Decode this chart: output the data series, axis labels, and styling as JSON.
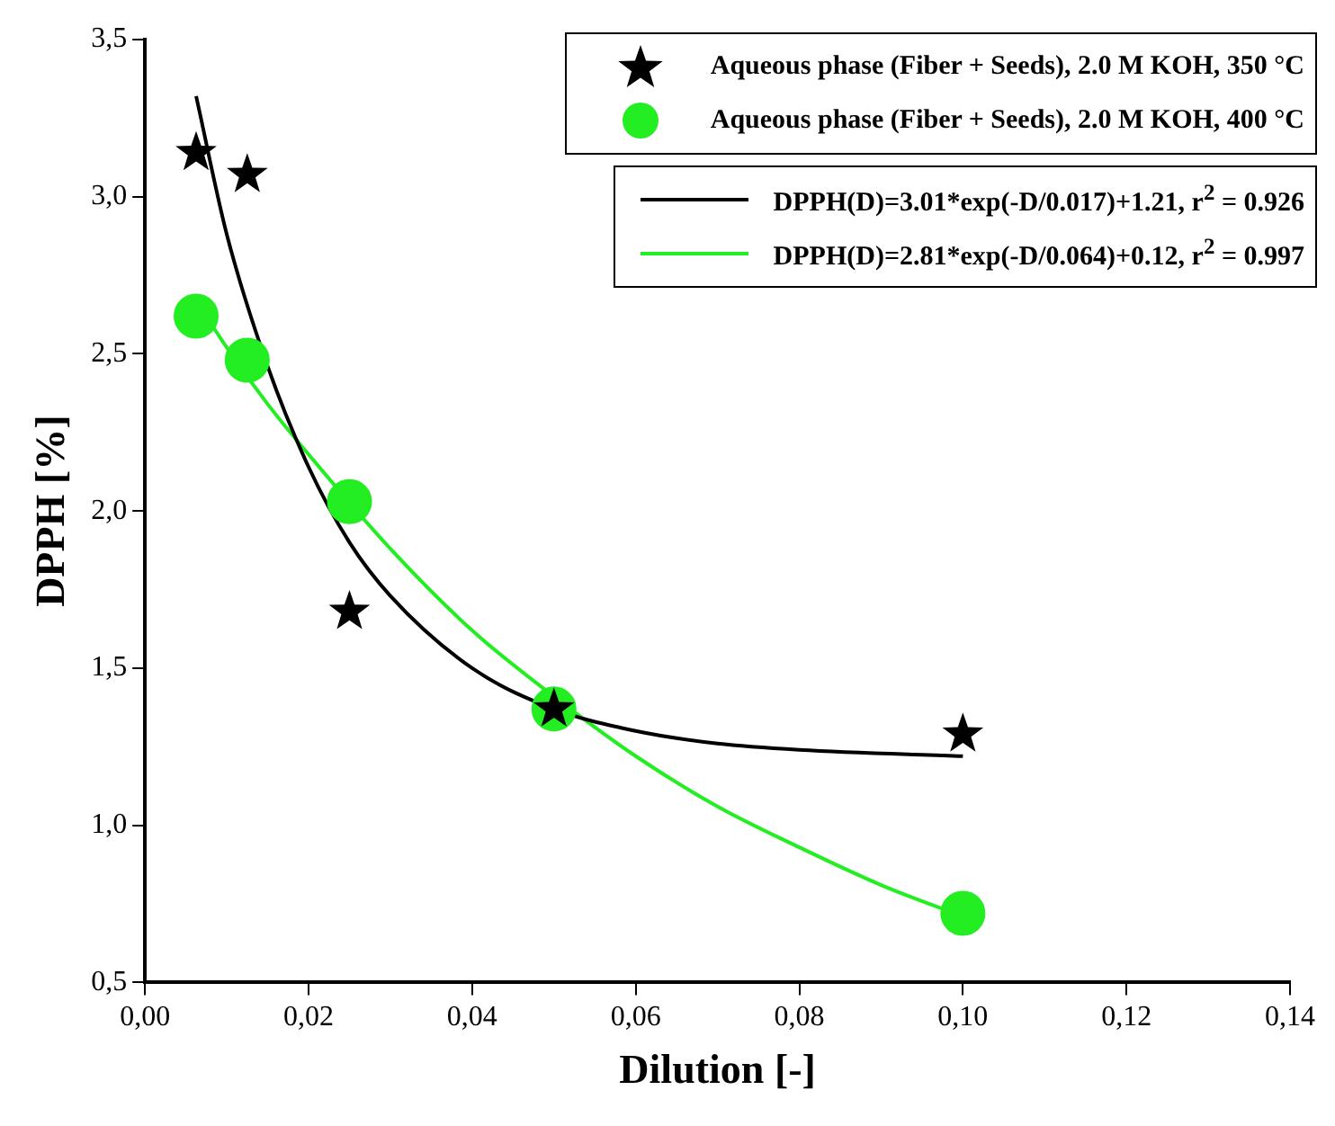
{
  "chart_data": {
    "type": "scatter",
    "xlabel": "Dilution [-]",
    "ylabel": "DPPH [%]",
    "xlim": [
      0,
      0.14
    ],
    "xticks": [
      {
        "value": 0,
        "label": "0,00"
      },
      {
        "value": 0.02,
        "label": "0,02"
      },
      {
        "value": 0.04,
        "label": "0,04"
      },
      {
        "value": 0.06,
        "label": "0,06"
      },
      {
        "value": 0.08,
        "label": "0,08"
      },
      {
        "value": 0.1,
        "label": "0,10"
      },
      {
        "value": 0.12,
        "label": "0,12"
      },
      {
        "value": 0.14,
        "label": "0,14"
      }
    ],
    "ylim": [
      0.5,
      3.5
    ],
    "yticks": [
      {
        "value": 0.5,
        "label": "0,5"
      },
      {
        "value": 1,
        "label": "1,0"
      },
      {
        "value": 1.5,
        "label": "1,5"
      },
      {
        "value": 2,
        "label": "2,0"
      },
      {
        "value": 2.5,
        "label": "2,5"
      },
      {
        "value": 3,
        "label": "3,0"
      },
      {
        "value": 3.5,
        "label": "3,5"
      }
    ],
    "legend": "top right",
    "series": [
      {
        "name": "Aqueous phase (Fiber + Seeds), 2.0 M KOH, 350 °C",
        "color": "#000000",
        "marker": "star",
        "x": [
          0.00625,
          0.0125,
          0.025,
          0.05,
          0.1
        ],
        "values": [
          3.14,
          3.07,
          1.68,
          1.37,
          1.29
        ]
      },
      {
        "name": "Aqueous phase (Fiber + Seeds), 2.0 M KOH, 400 °C",
        "color": "#22ee22",
        "marker": "circle",
        "x": [
          0.00625,
          0.0125,
          0.025,
          0.05,
          0.1
        ],
        "values": [
          2.62,
          2.48,
          2.03,
          1.37,
          0.72
        ]
      },
      {
        "type": "line",
        "name": "DPPH(D)=3.01*exp(-D/0.017)+1.21, r$^{2}$ = 0.926",
        "color": "#000000",
        "marker": "none",
        "line_style": "solid",
        "x": [
          0.00625,
          0.01,
          0.015,
          0.02,
          0.025,
          0.03,
          0.04,
          0.05,
          0.06,
          0.07,
          0.08,
          0.1
        ],
        "values": [
          3.32,
          2.88,
          2.46,
          2.14,
          1.9,
          1.73,
          1.5,
          1.37,
          1.3,
          1.26,
          1.24,
          1.22
        ]
      },
      {
        "type": "line",
        "name": "DPPH(D)=2.81*exp(-D/0.064)+0.12, r$^{2}$ = 0.997",
        "color": "#22ee22",
        "marker": "none",
        "line_style": "solid",
        "x": [
          0.00625,
          0.01,
          0.015,
          0.02,
          0.03,
          0.04,
          0.05,
          0.06,
          0.07,
          0.08,
          0.09,
          0.1
        ],
        "values": [
          2.67,
          2.52,
          2.34,
          2.18,
          1.88,
          1.62,
          1.41,
          1.22,
          1.06,
          0.93,
          0.81,
          0.71
        ]
      }
    ]
  }
}
